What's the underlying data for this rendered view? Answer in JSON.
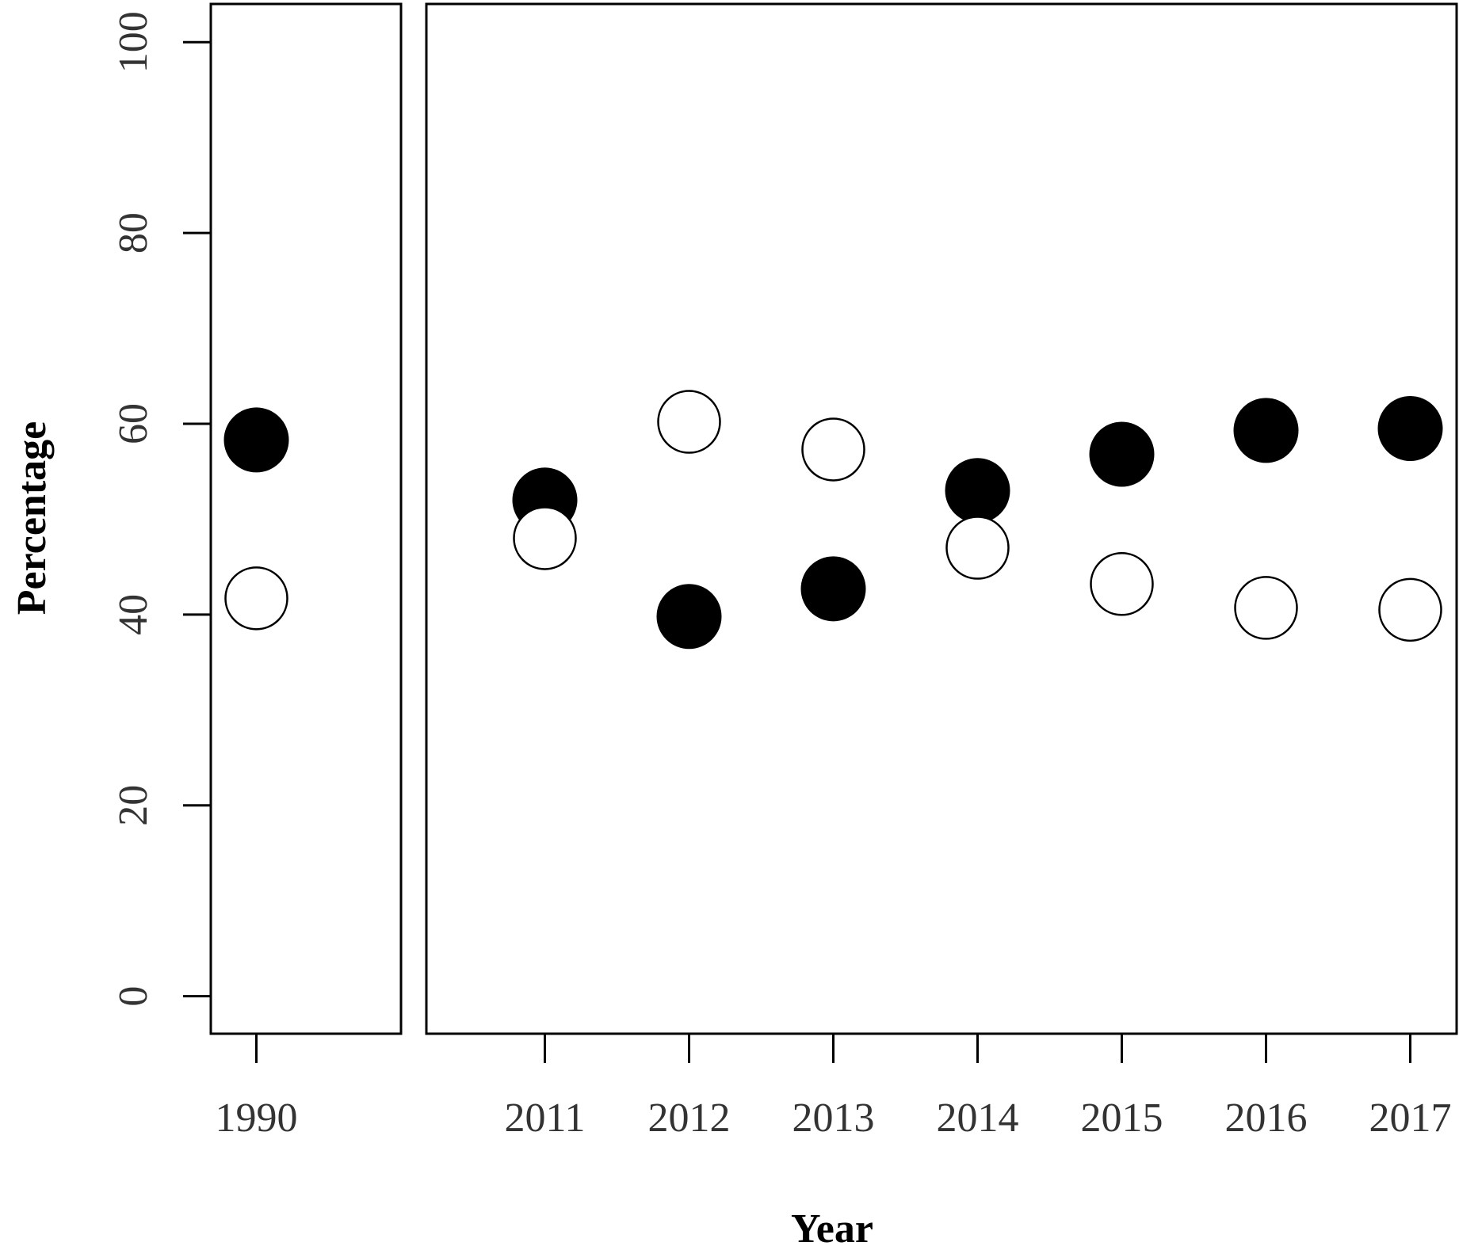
{
  "chart_data": {
    "type": "scatter",
    "title": "",
    "xlabel": "Year",
    "ylabel": "Percentage",
    "ylim": [
      0,
      100
    ],
    "yticks": [
      "0",
      "20",
      "40",
      "60",
      "80",
      "100"
    ],
    "grid": false,
    "legend": "none",
    "panels": [
      {
        "categories": [
          "1990"
        ]
      },
      {
        "categories": [
          "2011",
          "2012",
          "2013",
          "2014",
          "2015",
          "2016",
          "2017"
        ]
      }
    ],
    "x": [
      "1990",
      "2011",
      "2012",
      "2013",
      "2014",
      "2015",
      "2016",
      "2017"
    ],
    "series": [
      {
        "marker": "filled-circle",
        "color": "#000000",
        "values": [
          58.3,
          52.0,
          39.8,
          42.7,
          53.0,
          56.8,
          59.3,
          59.5
        ]
      },
      {
        "marker": "open-circle",
        "color": "#ffffff",
        "values": [
          41.7,
          48.0,
          60.2,
          57.3,
          47.0,
          43.2,
          40.7,
          40.5
        ]
      }
    ]
  }
}
